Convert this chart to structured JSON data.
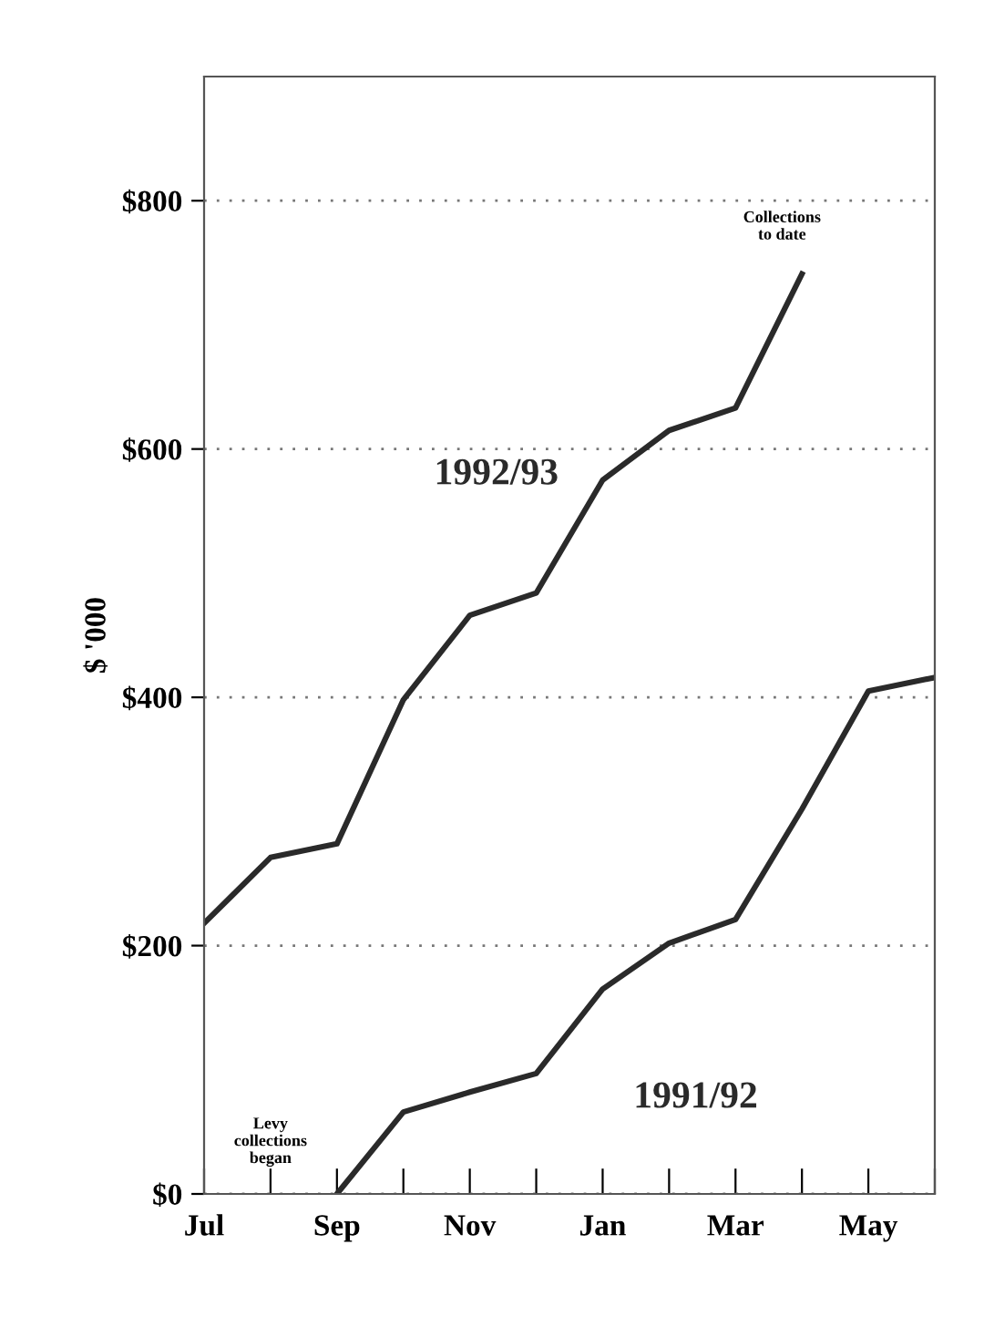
{
  "chart_data": {
    "type": "line",
    "ylabel": "$ '000",
    "categories": [
      "Jul",
      null,
      "Sep",
      null,
      "Nov",
      null,
      "Jan",
      null,
      "Mar",
      null,
      "May",
      null
    ],
    "series": [
      {
        "name": "1992/93",
        "color": "#2a2a2a",
        "values": [
          218,
          271,
          282,
          398,
          466,
          484,
          575,
          615,
          633,
          741,
          null,
          null
        ]
      },
      {
        "name": "1991/92",
        "color": "#2a2a2a",
        "values": [
          null,
          null,
          0,
          66,
          82,
          97,
          165,
          202,
          221,
          310,
          405,
          416
        ]
      }
    ],
    "ylim": [
      0,
      900
    ],
    "yticks": [
      {
        "value": 0,
        "label": "$0"
      },
      {
        "value": 200,
        "label": "$200"
      },
      {
        "value": 400,
        "label": "$400"
      },
      {
        "value": 600,
        "label": "$600"
      },
      {
        "value": 800,
        "label": "$800"
      }
    ],
    "grid": "y",
    "legend": false,
    "marker": "none",
    "line_style": "solid",
    "annotations": [
      "Collections\nto date",
      "Levy\ncollections\nbegan"
    ]
  }
}
